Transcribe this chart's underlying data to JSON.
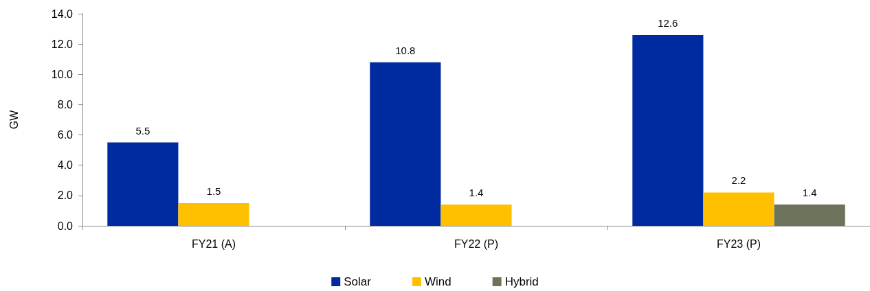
{
  "chart_data": {
    "type": "bar",
    "ylabel": "GW",
    "categories": [
      "FY21 (A)",
      "FY22 (P)",
      "FY23 (P)"
    ],
    "series": [
      {
        "name": "Solar",
        "color": "#002aa0",
        "values": [
          5.5,
          10.8,
          12.6
        ]
      },
      {
        "name": "Wind",
        "color": "#ffc000",
        "values": [
          1.5,
          1.4,
          2.2
        ]
      },
      {
        "name": "Hybrid",
        "color": "#6b735a",
        "values": [
          null,
          null,
          1.4
        ]
      }
    ],
    "ylim": [
      0,
      14
    ],
    "yticks": [
      {
        "value": 0,
        "label": "0.0"
      },
      {
        "value": 2,
        "label": "2.0"
      },
      {
        "value": 4,
        "label": "4.0"
      },
      {
        "value": 6,
        "label": "6.0"
      },
      {
        "value": 8,
        "label": "8.0"
      },
      {
        "value": 10,
        "label": "10.0"
      },
      {
        "value": 12,
        "label": "12.0"
      },
      {
        "value": 14,
        "label": "14.0"
      }
    ],
    "data_labels": true,
    "grid": false,
    "legend": "bottom"
  }
}
